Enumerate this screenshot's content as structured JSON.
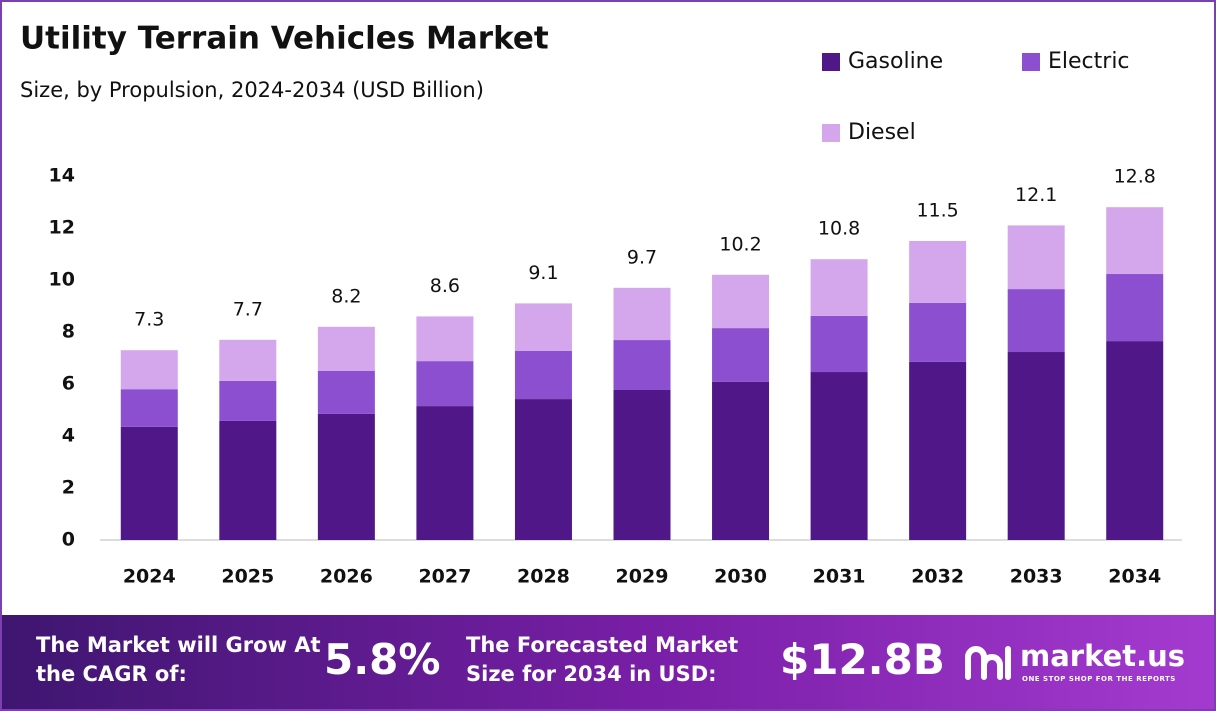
{
  "chart_data": {
    "type": "stacked-bar",
    "title": "Utility Terrain Vehicles Market",
    "subtitle": "Size, by Propulsion, 2024-2034 (USD Billion)",
    "categories": [
      "2024",
      "2025",
      "2026",
      "2027",
      "2028",
      "2029",
      "2030",
      "2031",
      "2032",
      "2033",
      "2034"
    ],
    "series": [
      {
        "name": "Gasoline",
        "color": "#4f1787",
        "values": [
          4.35,
          4.58,
          4.85,
          5.15,
          5.42,
          5.77,
          6.08,
          6.46,
          6.85,
          7.23,
          7.65
        ]
      },
      {
        "name": "Electric",
        "color": "#8b4fd0",
        "values": [
          1.45,
          1.54,
          1.65,
          1.73,
          1.85,
          1.92,
          2.07,
          2.16,
          2.27,
          2.42,
          2.58
        ]
      },
      {
        "name": "Diesel",
        "color": "#d4a6ec",
        "values": [
          1.5,
          1.58,
          1.7,
          1.72,
          1.83,
          2.01,
          2.05,
          2.18,
          2.38,
          2.45,
          2.57
        ]
      }
    ],
    "totals": [
      7.3,
      7.7,
      8.2,
      8.6,
      9.1,
      9.7,
      10.2,
      10.8,
      11.5,
      12.1,
      12.8
    ],
    "ylim": [
      0,
      14
    ],
    "yticks": [
      0,
      2,
      4,
      6,
      8,
      10,
      12,
      14
    ],
    "grid": false,
    "legend": "top-right"
  },
  "footer": {
    "cagr_label": "The Market will Grow At the CAGR of:",
    "cagr_value": "5.8%",
    "forecast_label": "The Forecasted Market Size for 2034 in USD:",
    "forecast_value": "$12.8B",
    "brand": "market.us",
    "tagline": "ONE STOP SHOP FOR THE REPORTS"
  }
}
